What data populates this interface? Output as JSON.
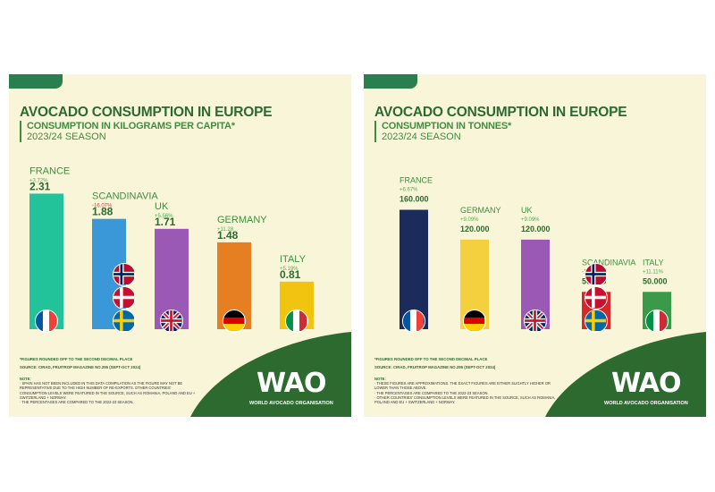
{
  "panels": [
    {
      "title": "AVOCADO CONSUMPTION IN EUROPE",
      "subtitle": "CONSUMPTION IN KILOGRAMS PER CAPITA*",
      "season": "2023/24 SEASON",
      "footnote": "*FIGURES ROUNDED OFF TO THE SECOND DECIMAL PLACE",
      "source": "SOURCE: CIRAD, FRUITROP MAGAZINE NO.295 (SEPT-OCT 2024)",
      "notes_heading": "NOTE:",
      "notes": [
        "· SPAIN HAS NOT BEEN INCLUDED IN THIS DATA COMPILATION AS THE FIGURE MAY NOT BE",
        "  REPRESENTATIVE DUE TO THE HIGH NUMBER OF RE-EXPORTS. OTHER COUNTRIES'",
        "  CONSUMPTION LEVELS WERE FEATURED IN THE SOURCE, SUCH AS ROMANIA, POLAND AND EU +",
        "  SWITZERLAND + NORWAY.",
        "· THE PERCENTAGES ARE COMPARED TO THE 2022-23 SEASON."
      ],
      "logo_text": "WAO",
      "logo_name": "WORLD AVOCADO ORGANISATION"
    },
    {
      "title": "AVOCADO CONSUMPTION IN EUROPE",
      "subtitle": "CONSUMPTION IN TONNES*",
      "season": "2023/24 SEASON",
      "footnote": "*FIGURES ROUNDED OFF TO THE SECOND DECIMAL PLACE",
      "source": "SOURCE: CIRAD, FRUITROP MAGAZINE NO.295 (SEPT-OCT 2024)",
      "notes_heading": "NOTE:",
      "notes": [
        "· THESE FIGURES ARE APPROXIMATIONS. THE EXACT FIGURES ARE EITHER SLIGHTLY HIGHER OR",
        "  LOWER THAN THOSE ABOVE.",
        "· THE PERCENTAGES ARE COMPARED TO THE 2022-23 SEASON.",
        "· OTHER COUNTRIES' CONSUMPTION LEVELS WERE FEATURED IN THE SOURCE, SUCH AS ROMANIA,",
        "  POLAND AND EU + SWITZERLAND + NORWAY."
      ],
      "logo_text": "WAO",
      "logo_name": "WORLD AVOCADO ORGANISATION"
    }
  ],
  "colors": {
    "panel_bg": "#f9f5d8",
    "brand_green": "#2d6a2f",
    "positive": "#4caf50",
    "negative": "#e53935"
  },
  "chart_data": [
    {
      "type": "bar",
      "title": "AVOCADO CONSUMPTION IN EUROPE",
      "subtitle": "CONSUMPTION IN KILOGRAMS PER CAPITA*",
      "categories": [
        "FRANCE",
        "SCANDINAVIA",
        "UK",
        "GERMANY",
        "ITALY"
      ],
      "values": [
        2.31,
        1.88,
        1.71,
        1.48,
        0.81
      ],
      "value_labels": [
        "2.31",
        "1.88",
        "1.71",
        "1.48",
        "0.81"
      ],
      "changes": [
        "+3.72%",
        "-16.07%",
        "+5.56%",
        "+11.28",
        "+5.19%"
      ],
      "colors": [
        "#22c39a",
        "#3a97d8",
        "#9b59b6",
        "#e67e22",
        "#f1c40f"
      ],
      "flags": [
        [
          "france"
        ],
        [
          "norway",
          "denmark",
          "sweden"
        ],
        [
          "uk"
        ],
        [
          "germany"
        ],
        [
          "italy"
        ]
      ],
      "ylim": [
        0,
        2.5
      ],
      "grid": false
    },
    {
      "type": "bar",
      "title": "AVOCADO CONSUMPTION IN EUROPE",
      "subtitle": "CONSUMPTION IN TONNES*",
      "categories": [
        "FRANCE",
        "GERMANY",
        "UK",
        "SCANDINAVIA",
        "ITALY"
      ],
      "values": [
        160000,
        120000,
        120000,
        50000,
        50000
      ],
      "value_labels": [
        "160.000",
        "120.000",
        "120.000",
        "50.000",
        "50.000"
      ],
      "changes": [
        "+6.67%",
        "+9.09%",
        "+9.09%",
        "-16.67%",
        "+11.11%"
      ],
      "colors": [
        "#1a2b5c",
        "#f4d03f",
        "#9b59b6",
        "#d62828",
        "#3a9a4a"
      ],
      "flags": [
        [
          "france"
        ],
        [
          "germany"
        ],
        [
          "uk"
        ],
        [
          "norway",
          "denmark",
          "sweden"
        ],
        [
          "italy"
        ]
      ],
      "ylim": [
        0,
        175000
      ],
      "grid": false
    }
  ]
}
